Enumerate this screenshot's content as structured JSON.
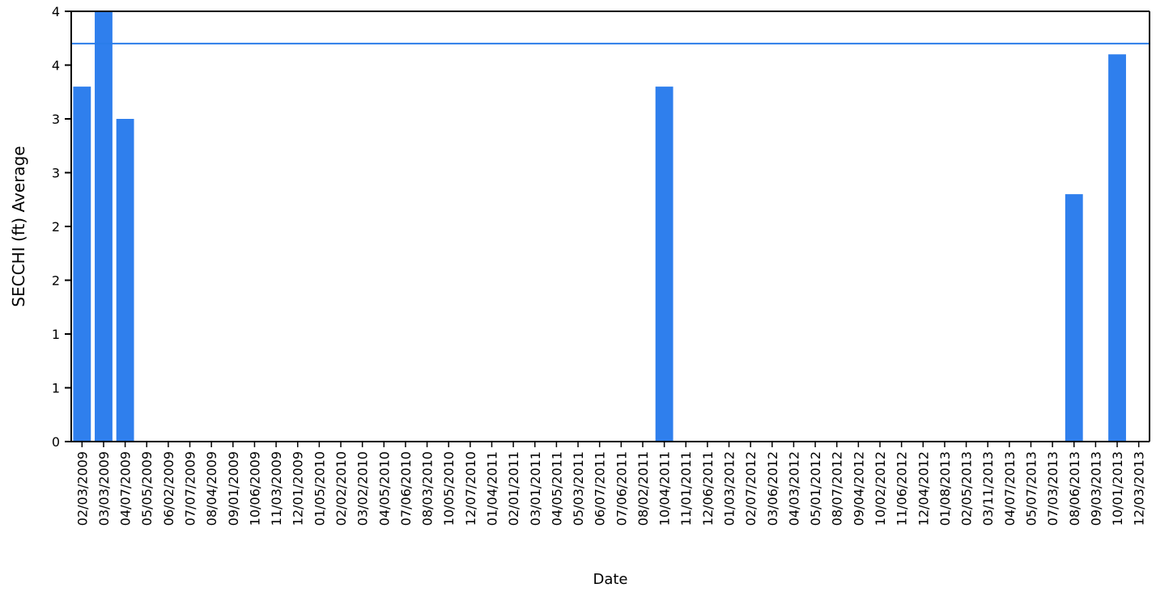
{
  "chart_data": {
    "type": "bar",
    "title": "",
    "xlabel": "Date",
    "ylabel": "SECCHI (ft) Average",
    "categories": [
      "02/03/2009",
      "03/03/2009",
      "04/07/2009",
      "05/05/2009",
      "06/02/2009",
      "07/07/2009",
      "08/04/2009",
      "09/01/2009",
      "10/06/2009",
      "11/03/2009",
      "12/01/2009",
      "01/05/2010",
      "02/02/2010",
      "03/02/2010",
      "04/05/2010",
      "07/06/2010",
      "08/03/2010",
      "10/05/2010",
      "12/07/2010",
      "01/04/2011",
      "02/01/2011",
      "03/01/2011",
      "04/05/2011",
      "05/03/2011",
      "06/07/2011",
      "07/06/2011",
      "08/02/2011",
      "10/04/2011",
      "11/01/2011",
      "12/06/2011",
      "01/03/2012",
      "02/07/2012",
      "03/06/2012",
      "04/03/2012",
      "05/01/2012",
      "08/07/2012",
      "09/04/2012",
      "10/02/2012",
      "11/06/2012",
      "12/04/2012",
      "01/08/2013",
      "02/05/2013",
      "03/11/2013",
      "04/07/2013",
      "05/07/2013",
      "07/03/2013",
      "08/06/2013",
      "09/03/2013",
      "10/01/2013",
      "12/03/2013"
    ],
    "values": [
      3.3,
      4.0,
      3.0,
      null,
      null,
      null,
      null,
      null,
      null,
      null,
      null,
      null,
      null,
      null,
      null,
      null,
      null,
      null,
      null,
      null,
      null,
      null,
      null,
      null,
      null,
      null,
      null,
      3.3,
      null,
      null,
      null,
      null,
      null,
      null,
      null,
      null,
      null,
      null,
      null,
      null,
      null,
      null,
      null,
      null,
      null,
      null,
      2.3,
      null,
      3.6,
      null
    ],
    "reference_line": {
      "value": 3.7,
      "color": "#2b7de9"
    },
    "ylim": [
      0,
      4.0
    ],
    "y_ticks": [
      0,
      0.5,
      1.0,
      1.5,
      2.0,
      2.5,
      3.0,
      3.5,
      4.0,
      4.5
    ],
    "y_tick_labels": [
      "0",
      "1",
      "1",
      "2",
      "2",
      "3",
      "3",
      "4",
      "4"
    ],
    "bar_color": "#2f7fed",
    "grid": false,
    "legend": "none"
  }
}
